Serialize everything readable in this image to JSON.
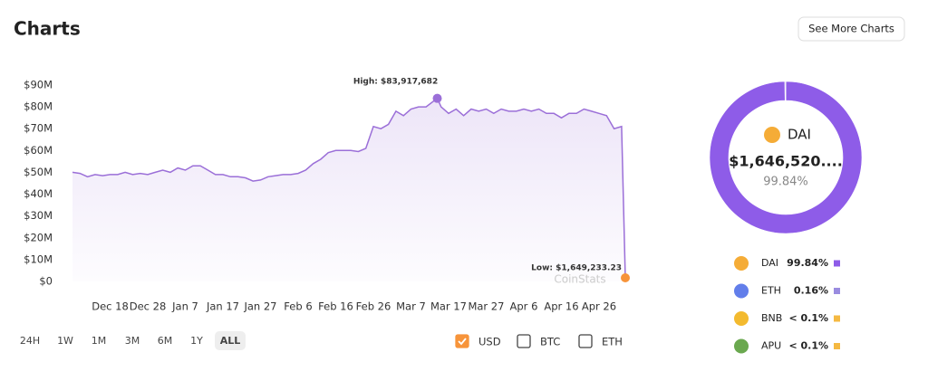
{
  "header": {
    "title": "Charts",
    "button": "See More Charts"
  },
  "chart_data": [
    {
      "type": "line",
      "color": "#9b6fd8",
      "x": [
        -10,
        -8,
        -6,
        -4,
        -2,
        0,
        2,
        4,
        6,
        8,
        10,
        12,
        14,
        16,
        18,
        20,
        22,
        24,
        26,
        28,
        30,
        32,
        34,
        36,
        38,
        40,
        42,
        44,
        46,
        48,
        50,
        52,
        54,
        56,
        58,
        60,
        62,
        64,
        66,
        68,
        70,
        72,
        74,
        76,
        78,
        80,
        82,
        84,
        87,
        88,
        90,
        92,
        94,
        96,
        98,
        100,
        102,
        104,
        106,
        108,
        110,
        112,
        114,
        116,
        118,
        120,
        122,
        124,
        126,
        128,
        130,
        132,
        134,
        136,
        137
      ],
      "values": [
        50000000,
        49500000,
        48000000,
        49000000,
        48500000,
        49000000,
        49000000,
        50000000,
        49000000,
        49500000,
        49000000,
        50000000,
        51000000,
        50000000,
        52000000,
        51000000,
        53000000,
        53000000,
        51000000,
        49000000,
        49000000,
        48000000,
        48000000,
        47500000,
        46000000,
        46500000,
        48000000,
        48500000,
        49000000,
        49000000,
        49500000,
        51000000,
        54000000,
        56000000,
        59000000,
        60000000,
        60000000,
        60000000,
        59500000,
        61000000,
        71000000,
        70000000,
        72000000,
        78000000,
        76000000,
        79000000,
        80000000,
        80000000,
        83917682,
        80000000,
        77000000,
        79000000,
        76000000,
        79000000,
        78000000,
        79000000,
        77000000,
        79000000,
        78000000,
        78000000,
        79000000,
        78000000,
        79000000,
        77000000,
        77000000,
        75000000,
        77000000,
        77000000,
        79000000,
        78000000,
        77000000,
        76000000,
        70000000,
        71000000,
        1649233.23
      ],
      "xlim": [
        -10,
        137
      ],
      "xticks": [
        {
          "value": 0,
          "label": "Dec 18"
        },
        {
          "value": 10,
          "label": "Dec 28"
        },
        {
          "value": 20,
          "label": "Jan 7"
        },
        {
          "value": 30,
          "label": "Jan 17"
        },
        {
          "value": 40,
          "label": "Jan 27"
        },
        {
          "value": 50,
          "label": "Feb 6"
        },
        {
          "value": 60,
          "label": "Feb 16"
        },
        {
          "value": 70,
          "label": "Feb 26"
        },
        {
          "value": 80,
          "label": "Mar 7"
        },
        {
          "value": 90,
          "label": "Mar 17"
        },
        {
          "value": 100,
          "label": "Mar 27"
        },
        {
          "value": 110,
          "label": "Apr 6"
        },
        {
          "value": 120,
          "label": "Apr 16"
        },
        {
          "value": 130,
          "label": "Apr 26"
        }
      ],
      "ylim": [
        0,
        90000000
      ],
      "yticks": [
        {
          "value": 0,
          "label": "$0"
        },
        {
          "value": 10000000,
          "label": "$10M"
        },
        {
          "value": 20000000,
          "label": "$20M"
        },
        {
          "value": 30000000,
          "label": "$30M"
        },
        {
          "value": 40000000,
          "label": "$40M"
        },
        {
          "value": 50000000,
          "label": "$50M"
        },
        {
          "value": 60000000,
          "label": "$60M"
        },
        {
          "value": 70000000,
          "label": "$70M"
        },
        {
          "value": 80000000,
          "label": "$80M"
        },
        {
          "value": 90000000,
          "label": "$90M"
        }
      ],
      "high_label": "High: $83,917,682",
      "low_label": "Low: $1,649,233.23",
      "low_color": "#f7943a",
      "watermark": "CoinStats"
    },
    {
      "type": "pie",
      "categories": [
        "DAI",
        "ETH",
        "BNB",
        "APU"
      ],
      "values": [
        99.84,
        0.16,
        0.01,
        0.01
      ],
      "value_labels": [
        "99.84%",
        "0.16%",
        "< 0.1%",
        "< 0.1%"
      ],
      "colors": [
        "#8e5ce8",
        "#9a8ce0",
        "#f5b942",
        "#f5b942"
      ],
      "icon_colors": [
        "#f5ac37",
        "#627eea",
        "#f3ba2f",
        "#6aa84f"
      ],
      "center_name": "DAI",
      "center_value": "$1,646,520....",
      "center_share": "99.84%"
    }
  ],
  "range_buttons": [
    {
      "label": "24H"
    },
    {
      "label": "1W"
    },
    {
      "label": "1M"
    },
    {
      "label": "3M"
    },
    {
      "label": "6M"
    },
    {
      "label": "1Y"
    },
    {
      "label": "ALL",
      "selected": true
    }
  ],
  "currencies": [
    {
      "label": "USD",
      "checked": true
    },
    {
      "label": "BTC",
      "checked": false
    },
    {
      "label": "ETH",
      "checked": false
    }
  ]
}
